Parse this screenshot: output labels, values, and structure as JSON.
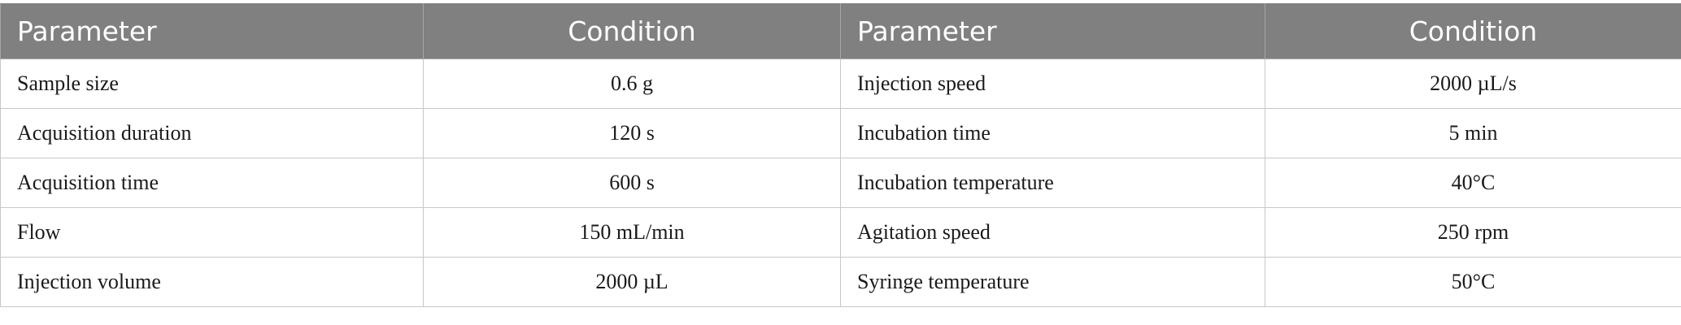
{
  "table": {
    "headers": [
      "Parameter",
      "Condition",
      "Parameter",
      "Condition"
    ],
    "rows": [
      {
        "param1": "Sample size",
        "cond1": "0.6 g",
        "param2": "Injection speed",
        "cond2": "2000 µL/s"
      },
      {
        "param1": "Acquisition duration",
        "cond1": "120 s",
        "param2": "Incubation time",
        "cond2": "5 min"
      },
      {
        "param1": "Acquisition time",
        "cond1": "600 s",
        "param2": "Incubation temperature",
        "cond2": "40°C"
      },
      {
        "param1": "Flow",
        "cond1": "150 mL/min",
        "param2": "Agitation speed",
        "cond2": "250 rpm"
      },
      {
        "param1": "Injection volume",
        "cond1": "2000 µL",
        "param2": "Syringe temperature",
        "cond2": "50°C"
      }
    ]
  },
  "colors": {
    "header_bg": "#808080",
    "header_text": "#ffffff",
    "grid": "#c8c8c8"
  }
}
